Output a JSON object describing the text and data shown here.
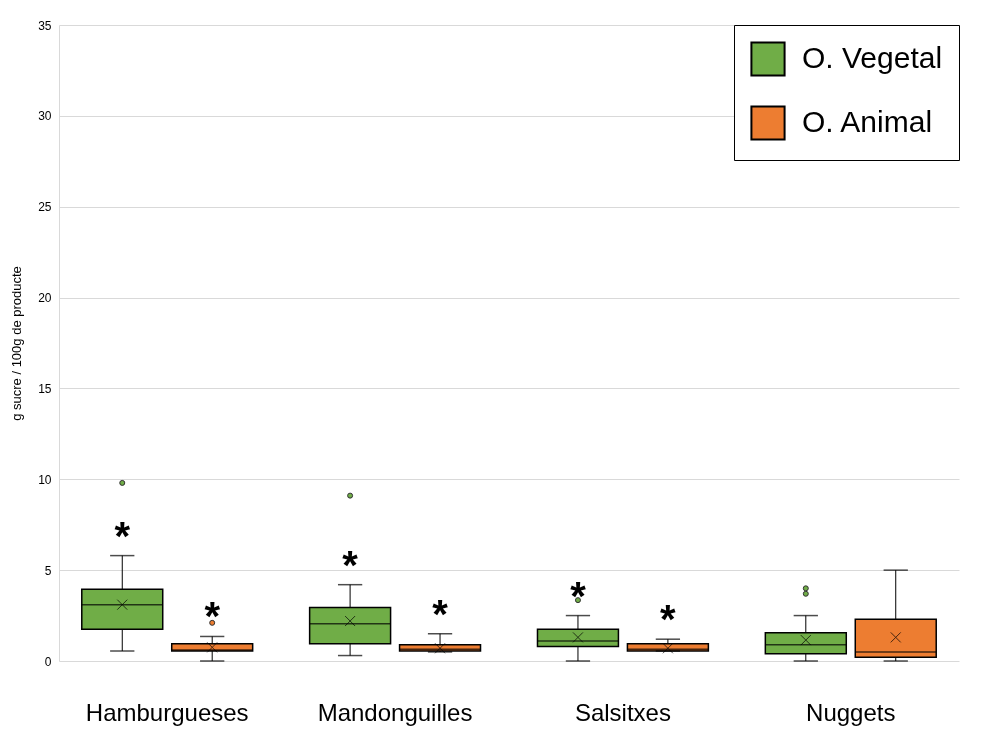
{
  "chart_data": {
    "type": "box",
    "ylabel": "g sucre / 100g de producte",
    "categories": [
      "Hamburgueses",
      "Mandonguilles",
      "Salsitxes",
      "Nuggets"
    ],
    "ylim": [
      0,
      35
    ],
    "yticks": [
      0,
      5,
      10,
      15,
      20,
      25,
      30,
      35
    ],
    "grid": "y",
    "legend": "top right",
    "series": [
      {
        "name": "O. Vegetal",
        "color": "#70ad47",
        "boxes": [
          {
            "low": 0.55,
            "q1": 1.75,
            "median": 3.1,
            "q3": 3.95,
            "high": 5.8,
            "mean": 3.1,
            "outliers": [
              9.8
            ]
          },
          {
            "low": 0.3,
            "q1": 0.95,
            "median": 2.05,
            "q3": 2.95,
            "high": 4.2,
            "mean": 2.2,
            "outliers": [
              9.1
            ]
          },
          {
            "low": 0,
            "q1": 0.8,
            "median": 1.1,
            "q3": 1.75,
            "high": 2.5,
            "mean": 1.3,
            "outliers": [
              3.35
            ]
          },
          {
            "low": 0,
            "q1": 0.4,
            "median": 0.9,
            "q3": 1.55,
            "high": 2.5,
            "mean": 1.15,
            "outliers": [
              3.7,
              4.0
            ]
          }
        ]
      },
      {
        "name": "O. Animal",
        "color": "#ed7d31",
        "boxes": [
          {
            "low": 0,
            "q1": 0.55,
            "median": 0.6,
            "q3": 0.95,
            "high": 1.35,
            "mean": 0.75,
            "outliers": [
              2.1
            ]
          },
          {
            "low": 0.5,
            "q1": 0.55,
            "median": 0.65,
            "q3": 0.9,
            "high": 1.5,
            "mean": 0.7
          },
          {
            "low": 0.55,
            "q1": 0.55,
            "median": 0.65,
            "q3": 0.95,
            "high": 1.2,
            "mean": 0.7
          },
          {
            "low": 0,
            "q1": 0.2,
            "median": 0.5,
            "q3": 2.3,
            "high": 5.0,
            "mean": 1.3
          }
        ]
      }
    ],
    "annotations": [
      "*",
      "*",
      "*",
      "*",
      "*",
      "*"
    ]
  }
}
